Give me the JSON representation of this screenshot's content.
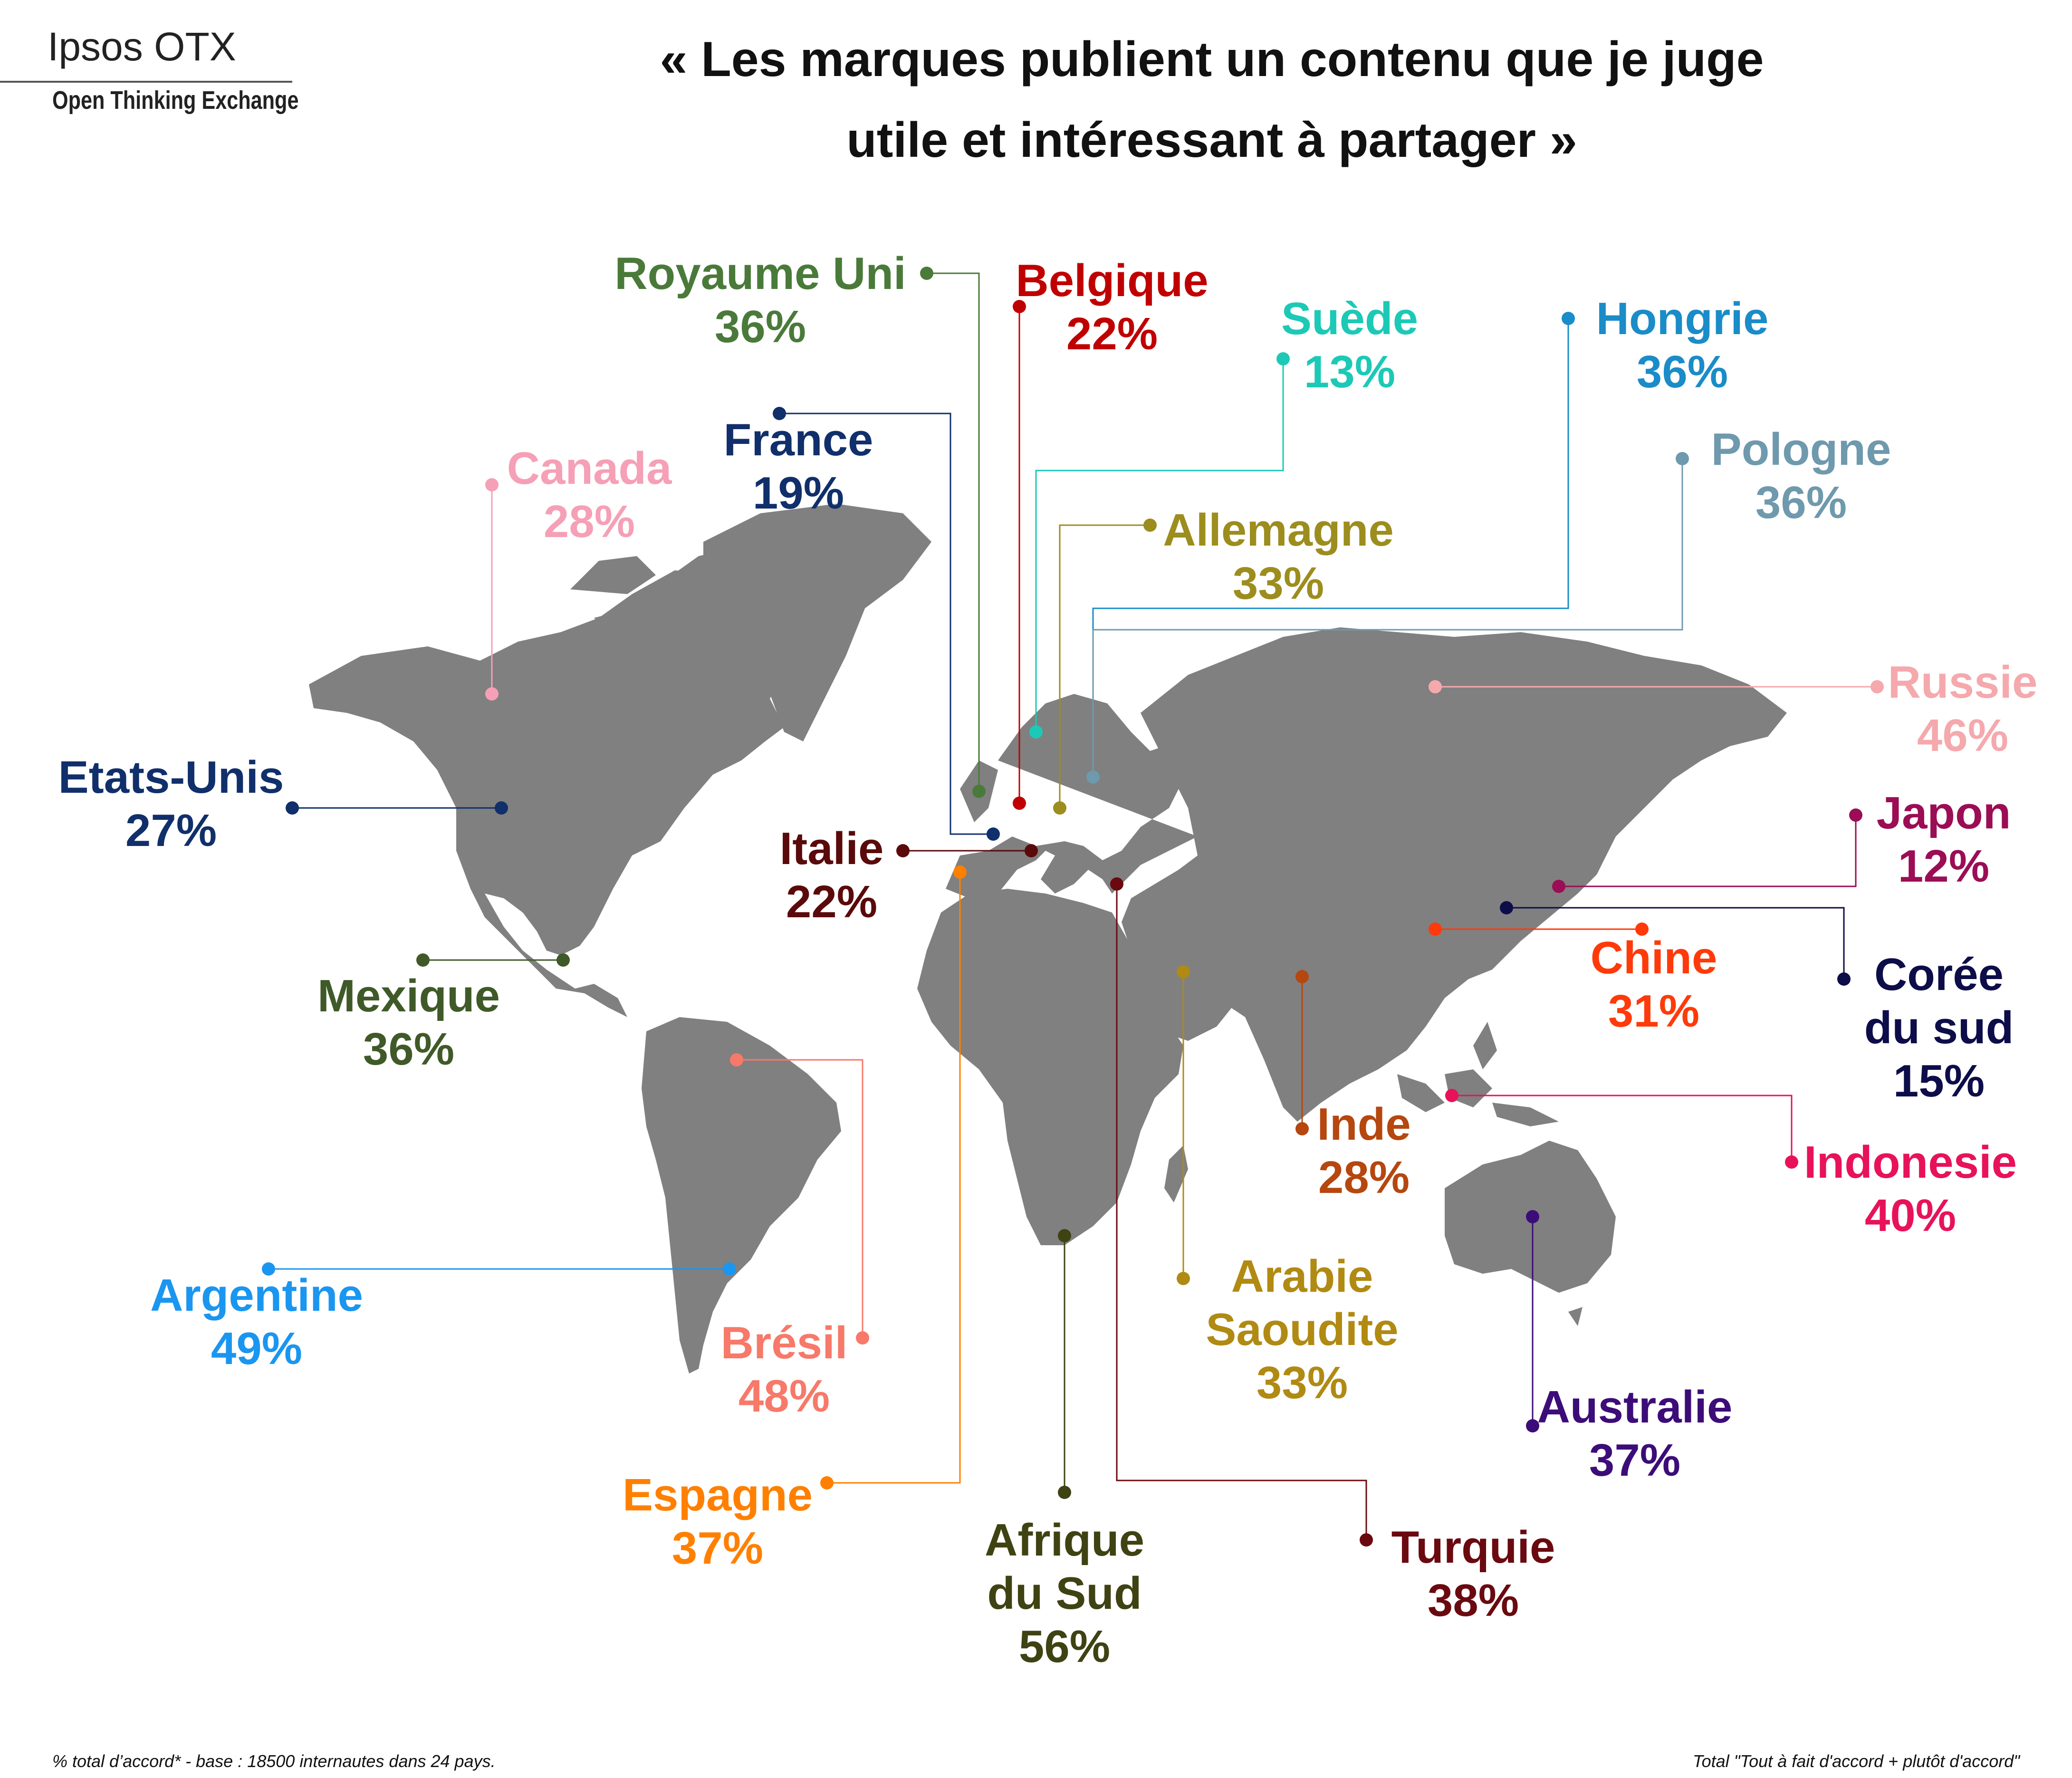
{
  "logo": {
    "name": "Ipsos OTX",
    "tagline": "Open Thinking Exchange"
  },
  "title": {
    "line1": "« Les marques publient un contenu que je juge",
    "line2": "utile et intéressant à partager »"
  },
  "footer": {
    "left": "% total d’accord* - base : 18500 internautes dans 24 pays.",
    "right": "Total \"Tout à fait d'accord + plutôt d'accord\""
  },
  "countries": [
    {
      "id": "royaume-uni",
      "name": [
        "Royaume Uni"
      ],
      "pct": "36%",
      "value": 36,
      "color": "#4a7a3a"
    },
    {
      "id": "belgique",
      "name": [
        "Belgique"
      ],
      "pct": "22%",
      "value": 22,
      "color": "#c00000"
    },
    {
      "id": "suede",
      "name": [
        "Suède"
      ],
      "pct": "13%",
      "value": 13,
      "color": "#1cc9b6"
    },
    {
      "id": "hongrie",
      "name": [
        "Hongrie"
      ],
      "pct": "36%",
      "value": 36,
      "color": "#1a8cc8"
    },
    {
      "id": "pologne",
      "name": [
        "Pologne"
      ],
      "pct": "36%",
      "value": 36,
      "color": "#6f99ad"
    },
    {
      "id": "canada",
      "name": [
        "Canada"
      ],
      "pct": "28%",
      "value": 28,
      "color": "#f5a0b6"
    },
    {
      "id": "france",
      "name": [
        "France"
      ],
      "pct": "19%",
      "value": 19,
      "color": "#102f6b"
    },
    {
      "id": "allemagne",
      "name": [
        "Allemagne"
      ],
      "pct": "33%",
      "value": 33,
      "color": "#9c8d1e"
    },
    {
      "id": "russie",
      "name": [
        "Russie"
      ],
      "pct": "46%",
      "value": 46,
      "color": "#f5a9ad"
    },
    {
      "id": "etats-unis",
      "name": [
        "Etats-Unis"
      ],
      "pct": "27%",
      "value": 27,
      "color": "#102f6b"
    },
    {
      "id": "italie",
      "name": [
        "Italie"
      ],
      "pct": "22%",
      "value": 22,
      "color": "#5a0a0a"
    },
    {
      "id": "japon",
      "name": [
        "Japon"
      ],
      "pct": "12%",
      "value": 12,
      "color": "#9b0d55"
    },
    {
      "id": "mexique",
      "name": [
        "Mexique"
      ],
      "pct": "36%",
      "value": 36,
      "color": "#3f5a28"
    },
    {
      "id": "chine",
      "name": [
        "Chine"
      ],
      "pct": "31%",
      "value": 31,
      "color": "#ff3a0a"
    },
    {
      "id": "coree-du-sud",
      "name": [
        "Corée",
        "du sud"
      ],
      "pct": "15%",
      "value": 15,
      "color": "#0d0d4a"
    },
    {
      "id": "inde",
      "name": [
        "Inde"
      ],
      "pct": "28%",
      "value": 28,
      "color": "#b5470f"
    },
    {
      "id": "indonesie",
      "name": [
        "Indonesie"
      ],
      "pct": "40%",
      "value": 40,
      "color": "#e8125a"
    },
    {
      "id": "argentine",
      "name": [
        "Argentine"
      ],
      "pct": "49%",
      "value": 49,
      "color": "#1a96f0"
    },
    {
      "id": "arabie-saoudite",
      "name": [
        "Arabie",
        "Saoudite"
      ],
      "pct": "33%",
      "value": 33,
      "color": "#b08a12"
    },
    {
      "id": "bresil",
      "name": [
        "Brésil"
      ],
      "pct": "48%",
      "value": 48,
      "color": "#f7796a"
    },
    {
      "id": "australie",
      "name": [
        "Australie"
      ],
      "pct": "37%",
      "value": 37,
      "color": "#3c0d78"
    },
    {
      "id": "espagne",
      "name": [
        "Espagne"
      ],
      "pct": "37%",
      "value": 37,
      "color": "#ff8000"
    },
    {
      "id": "afrique-du-sud",
      "name": [
        "Afrique",
        "du Sud"
      ],
      "pct": "56%",
      "value": 56,
      "color": "#3f4212"
    },
    {
      "id": "turquie",
      "name": [
        "Turquie"
      ],
      "pct": "38%",
      "value": 38,
      "color": "#6a0a10"
    }
  ]
}
